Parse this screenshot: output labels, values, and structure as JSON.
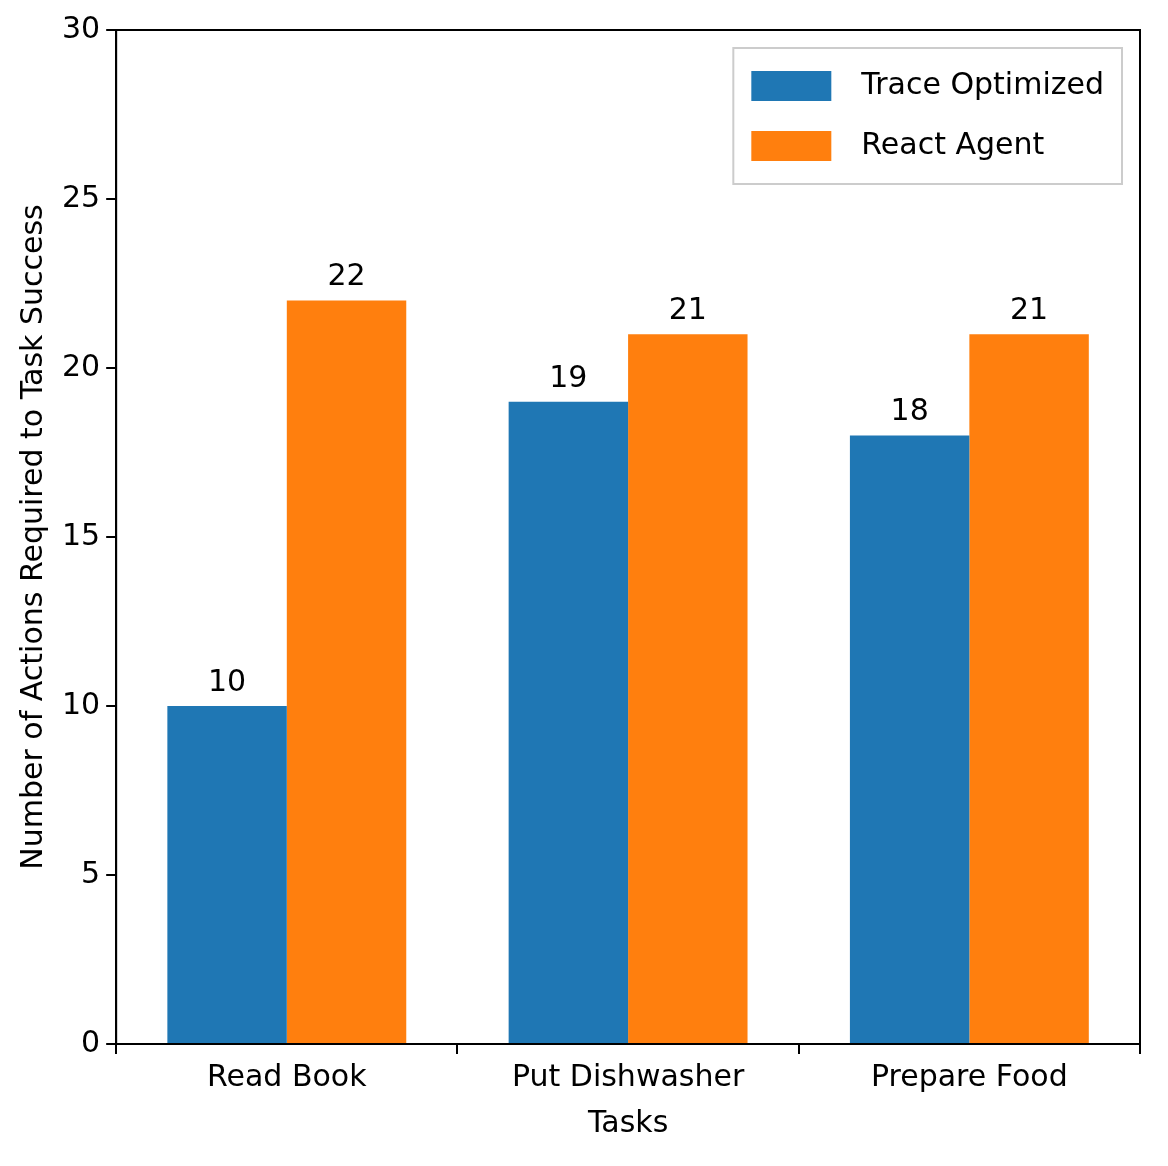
{
  "chart_data": {
    "type": "bar",
    "x_label": "Tasks",
    "y_label": "Number of Actions Required to Task Success",
    "categories": [
      "Read Book",
      "Put Dishwasher",
      "Prepare Food"
    ],
    "series": [
      {
        "name": "Trace Optimized",
        "color": "#1f77b4",
        "values": [
          10,
          19,
          18
        ]
      },
      {
        "name": "React Agent",
        "color": "#ff7f0e",
        "values": [
          22,
          21,
          21
        ]
      }
    ],
    "ylim": [
      0,
      30
    ],
    "yticks": [
      0,
      5,
      10,
      15,
      20,
      25,
      30
    ],
    "grid": false,
    "legend": "upper right",
    "data_labels": true
  }
}
